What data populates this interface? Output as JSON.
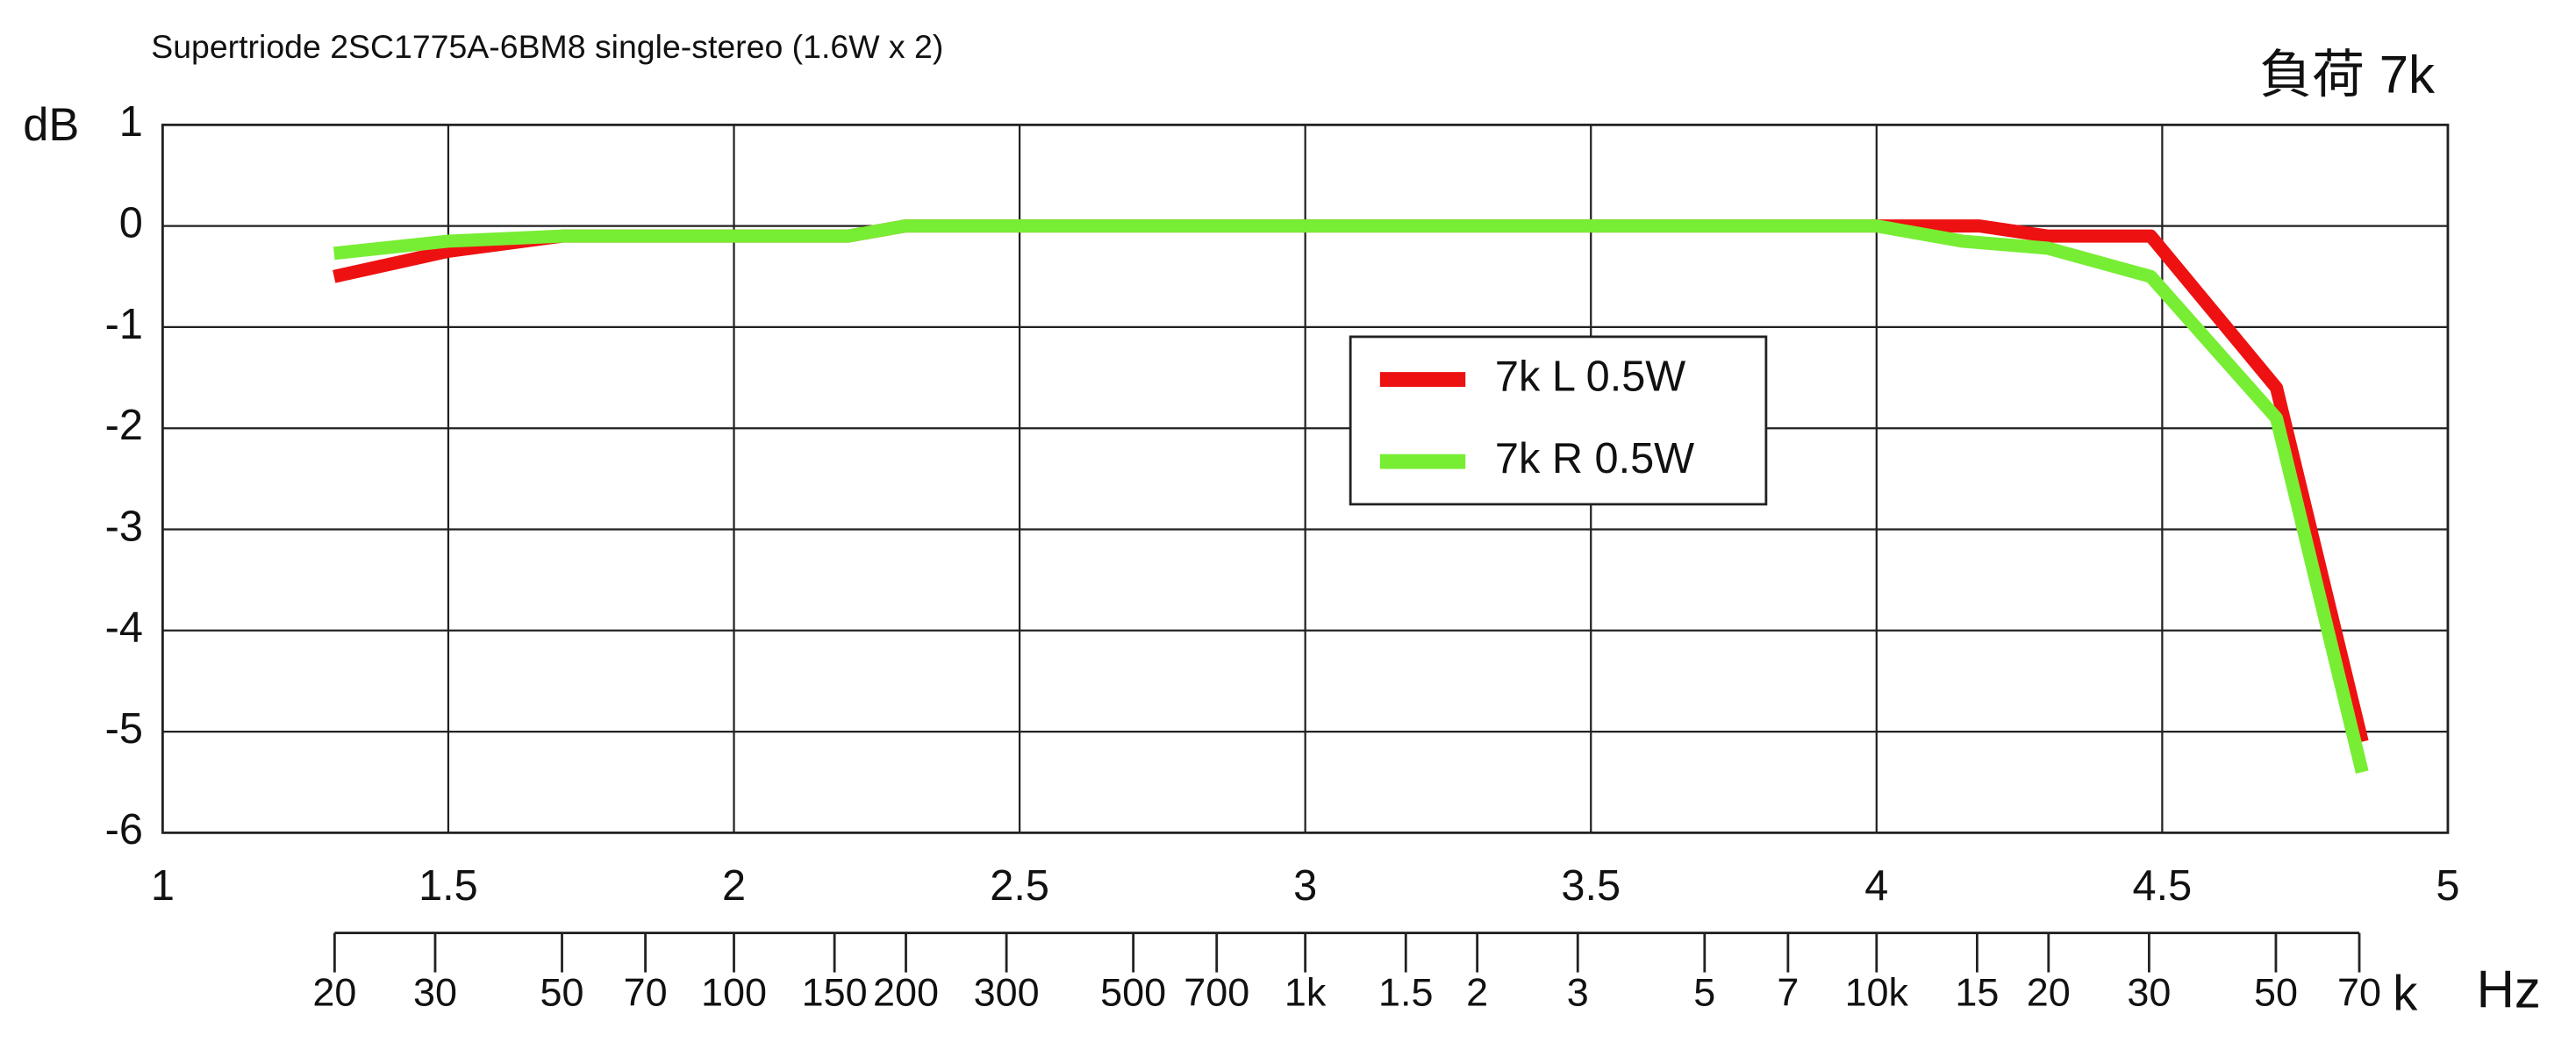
{
  "chart_data": {
    "type": "line",
    "title": "Supertriode 2SC1775A-6BM8 single-stereo (1.6W x 2)",
    "annotation": "負荷 7k",
    "y_label": "dB",
    "x_unit_prefix": "k",
    "x_label": "Hz",
    "xlim": [
      1,
      5
    ],
    "xticks": [
      1,
      1.5,
      2,
      2.5,
      3,
      3.5,
      4,
      4.5,
      5
    ],
    "ylim": [
      -6,
      1
    ],
    "yticks": [
      -6,
      -5,
      -4,
      -3,
      -2,
      -1,
      0,
      1
    ],
    "grid": true,
    "legend": "center",
    "freq_ticks": [
      {
        "value": 1.301,
        "label": "20"
      },
      {
        "value": 1.477,
        "label": "30"
      },
      {
        "value": 1.699,
        "label": "50"
      },
      {
        "value": 1.845,
        "label": "70"
      },
      {
        "value": 2,
        "label": "100"
      },
      {
        "value": 2.176,
        "label": "150"
      },
      {
        "value": 2.301,
        "label": "200"
      },
      {
        "value": 2.477,
        "label": "300"
      },
      {
        "value": 2.699,
        "label": "500"
      },
      {
        "value": 2.845,
        "label": "700"
      },
      {
        "value": 3,
        "label": "1k"
      },
      {
        "value": 3.176,
        "label": "1.5"
      },
      {
        "value": 3.301,
        "label": "2"
      },
      {
        "value": 3.477,
        "label": "3"
      },
      {
        "value": 3.699,
        "label": "5"
      },
      {
        "value": 3.845,
        "label": "7"
      },
      {
        "value": 4,
        "label": "10k"
      },
      {
        "value": 4.176,
        "label": "15"
      },
      {
        "value": 4.301,
        "label": "20"
      },
      {
        "value": 4.477,
        "label": "30"
      },
      {
        "value": 4.699,
        "label": "50"
      },
      {
        "value": 4.845,
        "label": "70"
      }
    ],
    "series": [
      {
        "name": "7k L 0.5W",
        "color": "#ee1111",
        "x": [
          1.3,
          1.5,
          1.7,
          2.2,
          2.3,
          4,
          4.18,
          4.3,
          4.48,
          4.7,
          4.85
        ],
        "values": [
          -0.5,
          -0.25,
          -0.1,
          -0.1,
          0,
          0,
          0,
          -0.1,
          -0.1,
          -1.6,
          -5.1
        ]
      },
      {
        "name": "7k R 0.5W",
        "color": "#77ee33",
        "x": [
          1.3,
          1.5,
          1.7,
          2.2,
          2.3,
          4,
          4.15,
          4.3,
          4.48,
          4.7,
          4.85
        ],
        "values": [
          -0.27,
          -0.15,
          -0.1,
          -0.1,
          0,
          0,
          -0.15,
          -0.22,
          -0.5,
          -1.9,
          -5.4
        ]
      }
    ]
  }
}
